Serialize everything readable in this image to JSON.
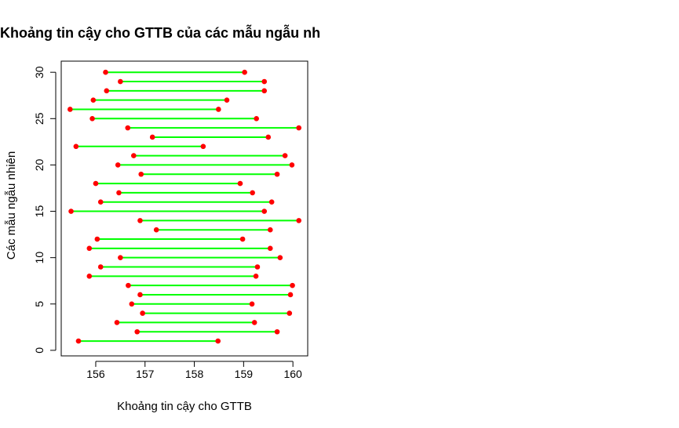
{
  "chart_data": {
    "type": "interval",
    "title": "Khoảng tin cậy cho GTTB của các mẫu ngẫu nh",
    "xlabel": "Khoảng tin cậy cho GTTB",
    "ylabel": "Các mẫu ngẫu nhiên",
    "xlim": [
      155.3,
      160.3
    ],
    "ylim": [
      -0.6,
      31.2
    ],
    "x_ticks": [
      156,
      157,
      158,
      159,
      160
    ],
    "y_ticks": [
      0,
      5,
      10,
      15,
      20,
      25,
      30
    ],
    "grid": false,
    "colors": {
      "segment": "#00ff00",
      "endpoint": "#ff0000",
      "frame": "#000000"
    },
    "intervals": [
      {
        "sample": 1,
        "lower": 155.65,
        "upper": 158.48
      },
      {
        "sample": 2,
        "lower": 156.84,
        "upper": 159.68
      },
      {
        "sample": 3,
        "lower": 156.43,
        "upper": 159.22
      },
      {
        "sample": 4,
        "lower": 156.95,
        "upper": 159.93
      },
      {
        "sample": 5,
        "lower": 156.73,
        "upper": 159.17
      },
      {
        "sample": 6,
        "lower": 156.9,
        "upper": 159.95
      },
      {
        "sample": 7,
        "lower": 156.66,
        "upper": 159.99
      },
      {
        "sample": 8,
        "lower": 155.87,
        "upper": 159.25
      },
      {
        "sample": 9,
        "lower": 156.1,
        "upper": 159.28
      },
      {
        "sample": 10,
        "lower": 156.5,
        "upper": 159.74
      },
      {
        "sample": 11,
        "lower": 155.87,
        "upper": 159.54
      },
      {
        "sample": 12,
        "lower": 156.03,
        "upper": 158.98
      },
      {
        "sample": 13,
        "lower": 157.23,
        "upper": 159.54
      },
      {
        "sample": 14,
        "lower": 156.9,
        "upper": 160.12
      },
      {
        "sample": 15,
        "lower": 155.5,
        "upper": 159.42
      },
      {
        "sample": 16,
        "lower": 156.1,
        "upper": 159.57
      },
      {
        "sample": 17,
        "lower": 156.47,
        "upper": 159.18
      },
      {
        "sample": 18,
        "lower": 156.0,
        "upper": 158.93
      },
      {
        "sample": 19,
        "lower": 156.92,
        "upper": 159.68
      },
      {
        "sample": 20,
        "lower": 156.45,
        "upper": 159.98
      },
      {
        "sample": 21,
        "lower": 156.77,
        "upper": 159.84
      },
      {
        "sample": 22,
        "lower": 155.6,
        "upper": 158.18
      },
      {
        "sample": 23,
        "lower": 157.15,
        "upper": 159.5
      },
      {
        "sample": 24,
        "lower": 156.65,
        "upper": 160.12
      },
      {
        "sample": 25,
        "lower": 155.93,
        "upper": 159.26
      },
      {
        "sample": 26,
        "lower": 155.48,
        "upper": 158.49
      },
      {
        "sample": 27,
        "lower": 155.95,
        "upper": 158.66
      },
      {
        "sample": 28,
        "lower": 156.22,
        "upper": 159.42
      },
      {
        "sample": 29,
        "lower": 156.5,
        "upper": 159.42
      },
      {
        "sample": 30,
        "lower": 156.2,
        "upper": 159.02
      }
    ]
  }
}
